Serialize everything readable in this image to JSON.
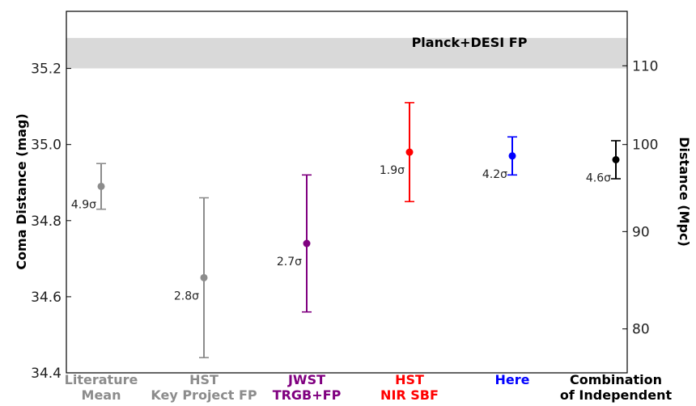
{
  "chart_data": {
    "type": "scatter",
    "ylabel_left": "Coma Distance (mag)",
    "ylabel_right": "Distance (Mpc)",
    "ylim": [
      34.4,
      35.35
    ],
    "yticks_left": [
      34.4,
      34.6,
      34.8,
      35.0,
      35.2
    ],
    "yticks_left_labels": [
      "34.4",
      "34.6",
      "34.8",
      "35.0",
      "35.2"
    ],
    "yticks_right": [
      80,
      90,
      100,
      110
    ],
    "yticks_right_labels": [
      "80",
      "90",
      "100",
      "110"
    ],
    "band": {
      "label": "Planck+DESI FP",
      "low": 35.2,
      "high": 35.28,
      "color": "#d9d9d9"
    },
    "points": [
      {
        "label_lines": [
          "Literature",
          "Mean"
        ],
        "value": 34.89,
        "err_low": 34.83,
        "err_high": 34.95,
        "tension": "4.9σ",
        "color": "#8c8c8c"
      },
      {
        "label_lines": [
          "HST",
          "Key Project FP"
        ],
        "value": 34.65,
        "err_low": 34.44,
        "err_high": 34.86,
        "tension": "2.8σ",
        "color": "#8c8c8c"
      },
      {
        "label_lines": [
          "JWST",
          "TRGB+FP"
        ],
        "value": 34.74,
        "err_low": 34.56,
        "err_high": 34.92,
        "tension": "2.7σ",
        "color": "#800080"
      },
      {
        "label_lines": [
          "HST",
          "NIR SBF"
        ],
        "value": 34.98,
        "err_low": 34.85,
        "err_high": 35.11,
        "tension": "1.9σ",
        "color": "#ff0000"
      },
      {
        "label_lines": [
          "Here"
        ],
        "value": 34.97,
        "err_low": 34.92,
        "err_high": 35.02,
        "tension": "4.2σ",
        "color": "#0000ff"
      },
      {
        "label_lines": [
          "Combination",
          "of Independent"
        ],
        "value": 34.96,
        "err_low": 34.91,
        "err_high": 35.01,
        "tension": "4.6σ",
        "color": "#000000"
      }
    ]
  }
}
